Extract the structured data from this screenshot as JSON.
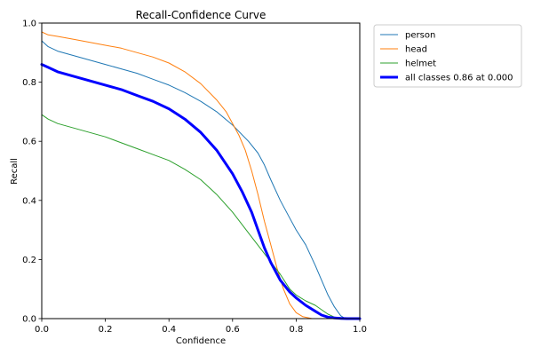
{
  "chart_data": {
    "type": "line",
    "title": "Recall-Confidence Curve",
    "xlabel": "Confidence",
    "ylabel": "Recall",
    "xlim": [
      0,
      1
    ],
    "ylim": [
      0,
      1
    ],
    "x_ticks": [
      "0.0",
      "0.2",
      "0.4",
      "0.6",
      "0.8",
      "1.0"
    ],
    "y_ticks": [
      "0.0",
      "0.2",
      "0.4",
      "0.6",
      "0.8",
      "1.0"
    ],
    "grid": false,
    "legend_position": "outside-top-right",
    "series": [
      {
        "name": "person",
        "color": "#1f77b4",
        "emphasis": false,
        "x": [
          0,
          0.02,
          0.05,
          0.1,
          0.15,
          0.2,
          0.25,
          0.3,
          0.35,
          0.4,
          0.45,
          0.5,
          0.55,
          0.6,
          0.65,
          0.68,
          0.7,
          0.72,
          0.75,
          0.78,
          0.8,
          0.83,
          0.86,
          0.88,
          0.9,
          0.92,
          0.94,
          0.95,
          0.97,
          1.0
        ],
        "y": [
          0.94,
          0.92,
          0.905,
          0.89,
          0.875,
          0.86,
          0.845,
          0.83,
          0.81,
          0.79,
          0.765,
          0.735,
          0.7,
          0.655,
          0.6,
          0.56,
          0.52,
          0.47,
          0.4,
          0.34,
          0.3,
          0.25,
          0.18,
          0.13,
          0.08,
          0.04,
          0.01,
          0.003,
          0.0,
          0.0
        ]
      },
      {
        "name": "head",
        "color": "#ff7f0e",
        "emphasis": false,
        "x": [
          0,
          0.02,
          0.05,
          0.1,
          0.15,
          0.2,
          0.25,
          0.3,
          0.35,
          0.4,
          0.45,
          0.5,
          0.55,
          0.58,
          0.6,
          0.62,
          0.64,
          0.66,
          0.68,
          0.7,
          0.72,
          0.74,
          0.76,
          0.78,
          0.8,
          0.82,
          0.85,
          0.9,
          0.95,
          1.0
        ],
        "y": [
          0.97,
          0.96,
          0.955,
          0.945,
          0.935,
          0.925,
          0.915,
          0.9,
          0.885,
          0.865,
          0.835,
          0.795,
          0.74,
          0.7,
          0.66,
          0.62,
          0.57,
          0.5,
          0.42,
          0.33,
          0.25,
          0.17,
          0.1,
          0.05,
          0.02,
          0.007,
          0.0,
          0.0,
          0.0,
          0.0
        ]
      },
      {
        "name": "helmet",
        "color": "#2ca02c",
        "emphasis": false,
        "x": [
          0,
          0.02,
          0.05,
          0.1,
          0.15,
          0.2,
          0.25,
          0.3,
          0.35,
          0.4,
          0.45,
          0.5,
          0.55,
          0.6,
          0.65,
          0.7,
          0.75,
          0.78,
          0.8,
          0.83,
          0.86,
          0.88,
          0.9,
          0.92,
          0.94,
          0.95,
          1.0
        ],
        "y": [
          0.69,
          0.675,
          0.66,
          0.645,
          0.63,
          0.615,
          0.595,
          0.575,
          0.555,
          0.535,
          0.505,
          0.47,
          0.42,
          0.36,
          0.29,
          0.22,
          0.15,
          0.1,
          0.08,
          0.06,
          0.045,
          0.03,
          0.015,
          0.005,
          0.001,
          0.0,
          0.0
        ]
      },
      {
        "name": "all classes 0.86 at 0.000",
        "color": "#0000ff",
        "emphasis": true,
        "x": [
          0,
          0.02,
          0.05,
          0.1,
          0.15,
          0.2,
          0.25,
          0.3,
          0.35,
          0.4,
          0.45,
          0.5,
          0.55,
          0.6,
          0.63,
          0.66,
          0.68,
          0.7,
          0.72,
          0.75,
          0.78,
          0.8,
          0.83,
          0.86,
          0.88,
          0.9,
          0.92,
          0.94,
          0.96,
          1.0
        ],
        "y": [
          0.86,
          0.85,
          0.835,
          0.82,
          0.805,
          0.79,
          0.775,
          0.755,
          0.735,
          0.71,
          0.675,
          0.63,
          0.57,
          0.49,
          0.43,
          0.36,
          0.3,
          0.24,
          0.19,
          0.13,
          0.09,
          0.07,
          0.045,
          0.025,
          0.012,
          0.005,
          0.002,
          0.001,
          0.0,
          0.0
        ]
      }
    ]
  }
}
